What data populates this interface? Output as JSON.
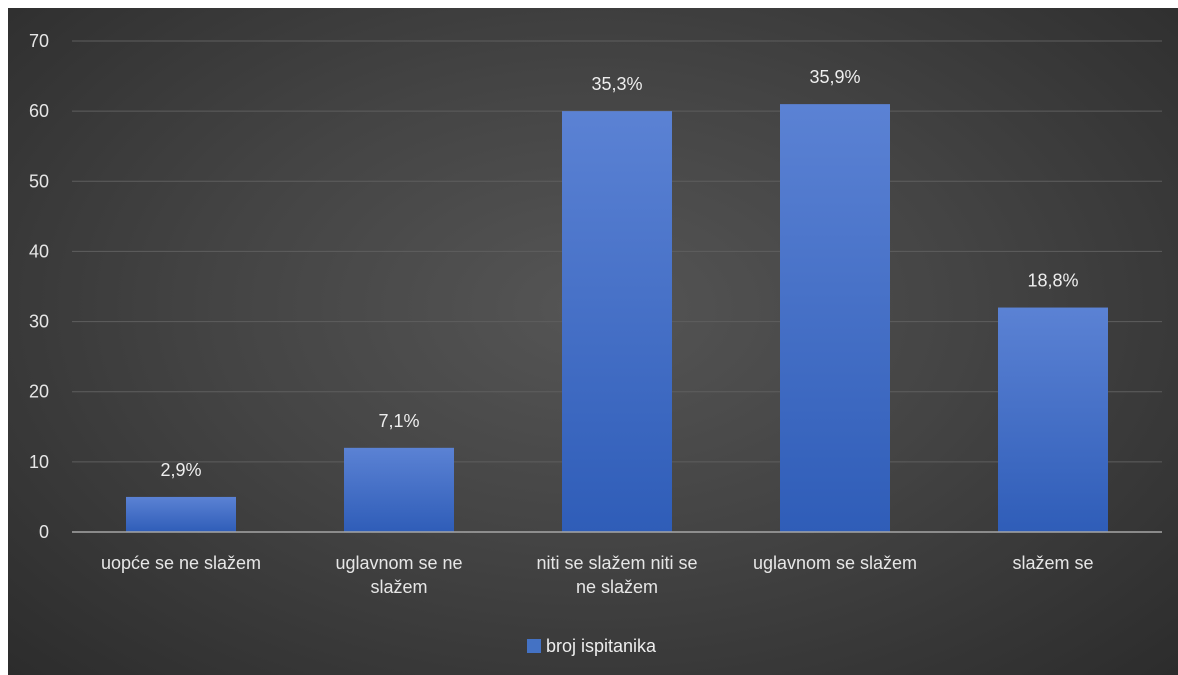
{
  "chart_data": {
    "type": "bar",
    "categories": [
      [
        "uopće se ne slažem"
      ],
      [
        "uglavnom se ne",
        "slažem"
      ],
      [
        "niti se slažem niti se",
        "ne slažem"
      ],
      [
        "uglavnom se slažem"
      ],
      [
        "slažem se"
      ]
    ],
    "series": [
      {
        "name": "broj ispitanika",
        "values": [
          5,
          12,
          60,
          61,
          32
        ],
        "data_labels": [
          "2,9%",
          "7,1%",
          "35,3%",
          "35,9%",
          "18,8%"
        ]
      }
    ],
    "y_ticks": [
      "0",
      "10",
      "20",
      "30",
      "40",
      "50",
      "60",
      "70"
    ],
    "ylim": [
      0,
      70
    ],
    "grid": true,
    "legend_position": "bottom",
    "colors": {
      "bar_top": "#5b82d4",
      "bar_bottom": "#2f5db8",
      "grid": "#5e5e5e",
      "axis": "#a6a6a6",
      "legend_swatch": "#4472c4"
    }
  }
}
